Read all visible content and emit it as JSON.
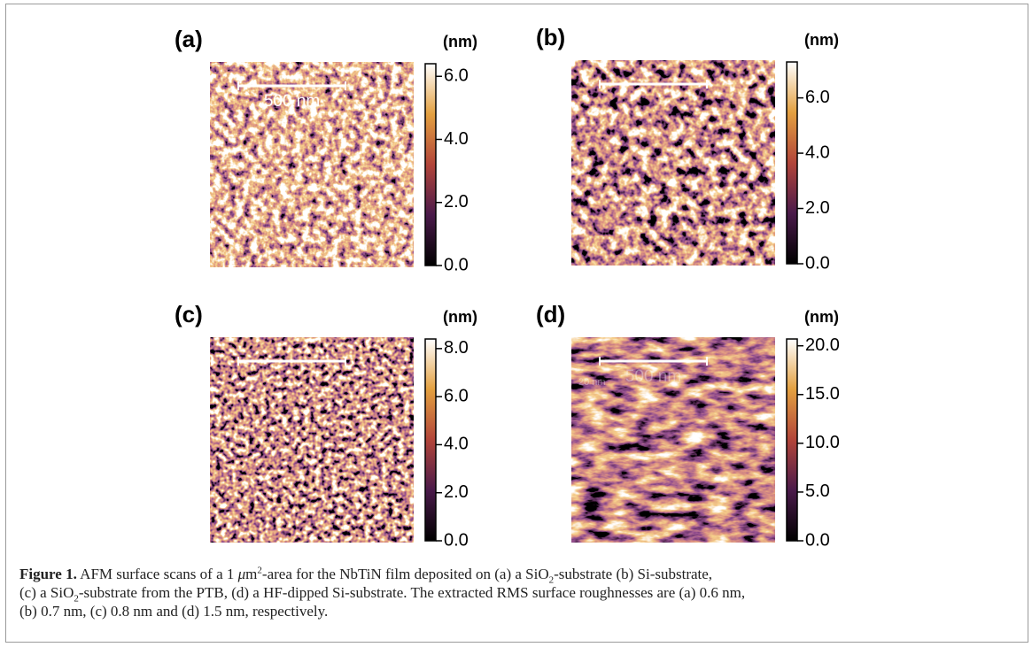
{
  "figure": {
    "panels": [
      {
        "label": "(a)",
        "unit": "(nm)",
        "scale_bar": "500 nm",
        "clim": [
          0,
          6.4
        ],
        "ticks": [
          {
            "value": 0,
            "label": "0.0"
          },
          {
            "value": 2,
            "label": "2.0"
          },
          {
            "value": 4,
            "label": "4.0"
          },
          {
            "value": 6,
            "label": "6.0"
          }
        ]
      },
      {
        "label": "(b)",
        "unit": "(nm)",
        "clim": [
          0,
          7.3
        ],
        "ticks": [
          {
            "value": 0,
            "label": "0.0"
          },
          {
            "value": 2,
            "label": "2.0"
          },
          {
            "value": 4,
            "label": "4.0"
          },
          {
            "value": 6,
            "label": "6.0"
          }
        ]
      },
      {
        "label": "(c)",
        "unit": "(nm)",
        "clim": [
          0,
          8.4
        ],
        "ticks": [
          {
            "value": 0,
            "label": "0.0"
          },
          {
            "value": 2,
            "label": "2.0"
          },
          {
            "value": 4,
            "label": "4.0"
          },
          {
            "value": 6,
            "label": "6.0"
          },
          {
            "value": 8,
            "label": "8.0"
          }
        ]
      },
      {
        "label": "(d)",
        "unit": "(nm)",
        "scale_bar": "500 nm",
        "scale_bar_sub": "20 nm",
        "clim": [
          0,
          20.7
        ],
        "ticks": [
          {
            "value": 0,
            "label": "0.0"
          },
          {
            "value": 5,
            "label": "5.0"
          },
          {
            "value": 10,
            "label": "10.0"
          },
          {
            "value": 15,
            "label": "15.0"
          },
          {
            "value": 20,
            "label": "20.0"
          }
        ]
      }
    ]
  },
  "caption": {
    "label": "Figure 1.",
    "parts": [
      " AFM surface scans of a 1 ",
      "μ",
      "m",
      "2",
      "-area for the NbTiN film deposited on (a) a SiO",
      "2",
      "-substrate (b) Si-substrate,",
      "(c) a SiO",
      "2",
      "-substrate from the PTB, (d) a HF-dipped Si-substrate. The extracted RMS surface roughnesses are (a) 0.6 nm,",
      "(b) 0.7 nm, (c) 0.8 nm and (d) 1.5 nm, respectively."
    ]
  }
}
